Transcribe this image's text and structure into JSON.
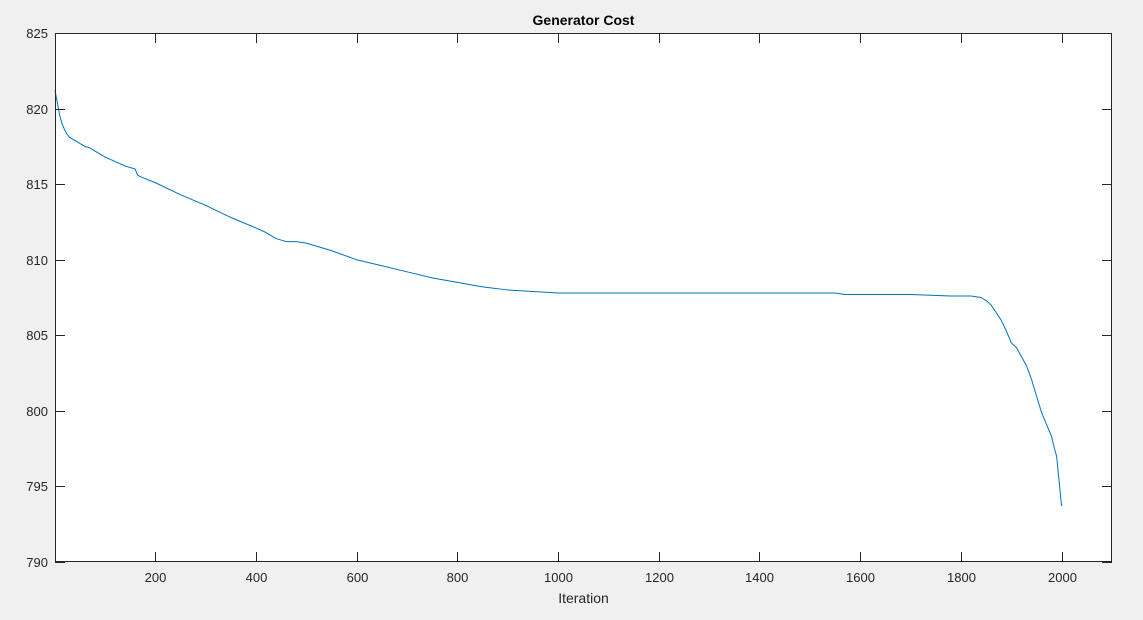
{
  "figure": {
    "background_color": "#f0f0f0",
    "axes_background_color": "#ffffff"
  },
  "chart_data": {
    "type": "line",
    "title": "Generator Cost",
    "xlabel": "Iteration",
    "ylabel": "",
    "xlim": [
      1,
      2100
    ],
    "ylim": [
      790,
      825
    ],
    "x_ticks": [
      200,
      400,
      600,
      800,
      1000,
      1200,
      1400,
      1600,
      1800,
      2000
    ],
    "y_ticks": [
      790,
      795,
      800,
      805,
      810,
      815,
      820,
      825
    ],
    "grid": false,
    "legend": "none",
    "series": [
      {
        "color": "#0072bd",
        "x": [
          1,
          5,
          10,
          15,
          20,
          25,
          30,
          40,
          50,
          60,
          70,
          80,
          100,
          120,
          140,
          160,
          165,
          170,
          200,
          250,
          300,
          350,
          400,
          420,
          440,
          460,
          480,
          500,
          520,
          550,
          600,
          650,
          700,
          750,
          800,
          850,
          900,
          950,
          1000,
          1100,
          1200,
          1300,
          1400,
          1500,
          1550,
          1570,
          1600,
          1700,
          1780,
          1800,
          1820,
          1840,
          1850,
          1860,
          1870,
          1880,
          1890,
          1900,
          1910,
          1920,
          1930,
          1940,
          1950,
          1960,
          1970,
          1980,
          1985,
          1990,
          1993,
          1996,
          1998,
          2000
        ],
        "y": [
          821.2,
          820.5,
          819.6,
          819.0,
          818.6,
          818.3,
          818.1,
          817.9,
          817.7,
          817.5,
          817.4,
          817.2,
          816.8,
          816.5,
          816.2,
          816.0,
          815.6,
          815.5,
          815.1,
          814.3,
          813.6,
          812.8,
          812.1,
          811.8,
          811.4,
          811.2,
          811.2,
          811.1,
          810.9,
          810.6,
          810.0,
          809.6,
          809.2,
          808.8,
          808.5,
          808.2,
          808.0,
          807.9,
          807.8,
          807.8,
          807.8,
          807.8,
          807.8,
          807.8,
          807.8,
          807.7,
          807.7,
          807.7,
          807.6,
          807.6,
          807.6,
          807.5,
          807.3,
          807.0,
          806.5,
          806.0,
          805.3,
          804.5,
          804.2,
          803.6,
          803.0,
          802.1,
          801.0,
          799.9,
          799.1,
          798.3,
          797.6,
          797.0,
          796.0,
          795.0,
          794.3,
          793.7
        ]
      }
    ]
  }
}
